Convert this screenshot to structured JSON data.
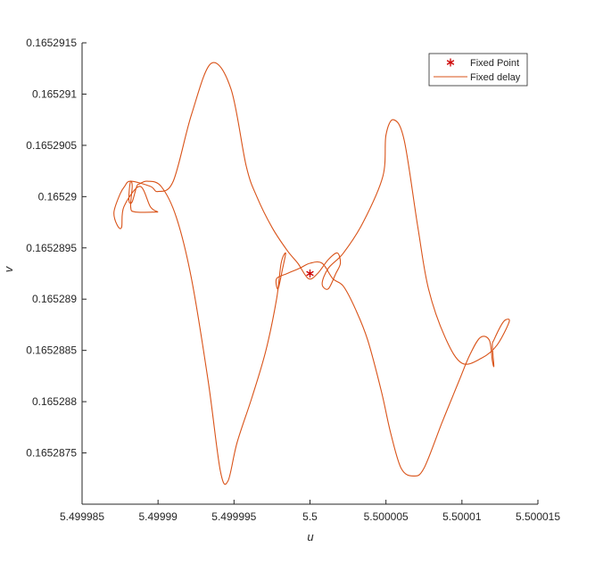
{
  "chart_data": {
    "type": "line",
    "xlabel": "u",
    "ylabel": "v",
    "xlim": [
      5.499985,
      5.500015
    ],
    "ylim": [
      0.165287,
      0.1652915
    ],
    "xticks": [
      5.499985,
      5.49999,
      5.499995,
      5.5,
      5.500005,
      5.50001,
      5.500015
    ],
    "xtick_labels": [
      "5.499985",
      "5.49999",
      "5.499995",
      "5.5",
      "5.500005",
      "5.50001",
      "5.500015"
    ],
    "yticks": [
      0.1652875,
      0.165288,
      0.1652885,
      0.165289,
      0.1652895,
      0.16529,
      0.1652905,
      0.165291,
      0.1652915
    ],
    "ytick_labels": [
      "0.1652875",
      "0.165288",
      "0.1652885",
      "0.165289",
      "0.1652895",
      "0.16529",
      "0.1652905",
      "0.165291",
      "0.1652915"
    ],
    "grid": false,
    "legend_position": "top-right",
    "series": [
      {
        "name": "Fixed Point",
        "kind": "marker",
        "marker": "asterisk",
        "color": "#cc0000",
        "x": [
          5.5
        ],
        "y": [
          0.16528925
        ]
      },
      {
        "name": "Fixed delay",
        "kind": "line",
        "color": "#d95319",
        "points": [
          [
            5.49999,
            0.16528985
          ],
          [
            5.4999895,
            0.1652899
          ],
          [
            5.4999888,
            0.1652901
          ],
          [
            5.49998775,
            0.1652899
          ],
          [
            5.4999876,
            0.1652897
          ],
          [
            5.4999873,
            0.165289725
          ],
          [
            5.4999871,
            0.16528985
          ],
          [
            5.4999875,
            0.165290025
          ],
          [
            5.4999878,
            0.1652901
          ],
          [
            5.4999882,
            0.16529015
          ],
          [
            5.4999895,
            0.1652901
          ],
          [
            5.49999,
            0.16529005
          ],
          [
            5.499991,
            0.16529015
          ],
          [
            5.4999922,
            0.1652908
          ],
          [
            5.4999935,
            0.1652913
          ],
          [
            5.4999948,
            0.16529105
          ],
          [
            5.4999958,
            0.1652903
          ],
          [
            5.4999965,
            0.16529
          ],
          [
            5.4999975,
            0.1652897
          ],
          [
            5.4999985,
            0.165289475
          ],
          [
            5.4999992,
            0.16528935
          ],
          [
            5.4999999,
            0.1652892
          ],
          [
            5.5000005,
            0.16528925
          ],
          [
            5.5000012,
            0.165289385
          ],
          [
            5.5000018,
            0.16528945
          ],
          [
            5.500002,
            0.16528935
          ],
          [
            5.5000017,
            0.16528925
          ],
          [
            5.5000012,
            0.1652891
          ],
          [
            5.5000008,
            0.16528915
          ],
          [
            5.5000012,
            0.1652893
          ],
          [
            5.5000022,
            0.16528945
          ],
          [
            5.5000035,
            0.16528975
          ],
          [
            5.5000048,
            0.1652902
          ],
          [
            5.500005,
            0.1652906
          ],
          [
            5.5000055,
            0.16529075
          ],
          [
            5.5000062,
            0.16529055
          ],
          [
            5.5000071,
            0.1652897
          ],
          [
            5.5000078,
            0.1652891
          ],
          [
            5.5000089,
            0.165288625
          ],
          [
            5.50001,
            0.165288375
          ],
          [
            5.5000113,
            0.165288425
          ],
          [
            5.5000123,
            0.16528855
          ],
          [
            5.5000131,
            0.165288775
          ],
          [
            5.5000129,
            0.1652888
          ],
          [
            5.5000126,
            0.16528875
          ],
          [
            5.5000121,
            0.1652886
          ],
          [
            5.500012,
            0.16528855
          ],
          [
            5.5000121,
            0.16528835
          ],
          [
            5.500012,
            0.1652884
          ],
          [
            5.5000118,
            0.1652886
          ],
          [
            5.5000112,
            0.165288625
          ],
          [
            5.5000105,
            0.16528845
          ],
          [
            5.5000098,
            0.1652882
          ],
          [
            5.5000087,
            0.1652878
          ],
          [
            5.5000075,
            0.16528735
          ],
          [
            5.5000068,
            0.165287275
          ],
          [
            5.500006,
            0.16528735
          ],
          [
            5.5000053,
            0.1652877
          ],
          [
            5.5000047,
            0.1652881
          ],
          [
            5.5000038,
            0.1652886
          ],
          [
            5.500003,
            0.1652889
          ],
          [
            5.5000022,
            0.165289125
          ],
          [
            5.5000015,
            0.1652892
          ],
          [
            5.5000008,
            0.16528935
          ],
          [
            5.5,
            0.16528935
          ],
          [
            5.4999993,
            0.1652893
          ],
          [
            5.4999985,
            0.16528925
          ],
          [
            5.4999978,
            0.1652892
          ],
          [
            5.4999979,
            0.1652891
          ],
          [
            5.4999982,
            0.1652893
          ],
          [
            5.4999984,
            0.16528945
          ],
          [
            5.4999981,
            0.16528935
          ],
          [
            5.4999978,
            0.165289
          ],
          [
            5.4999971,
            0.1652885
          ],
          [
            5.4999962,
            0.16528805
          ],
          [
            5.4999952,
            0.1652876
          ],
          [
            5.4999946,
            0.165287225
          ],
          [
            5.4999941,
            0.165287325
          ],
          [
            5.4999933,
            0.1652882
          ],
          [
            5.4999922,
            0.1652892
          ],
          [
            5.4999912,
            0.1652898
          ],
          [
            5.4999902,
            0.1652901
          ],
          [
            5.4999893,
            0.16529015
          ],
          [
            5.4999888,
            0.165290125
          ],
          [
            5.4999886,
            0.1652901
          ],
          [
            5.4999883,
            0.16528995
          ],
          [
            5.4999881,
            0.16528995
          ],
          [
            5.4999881,
            0.16529005
          ],
          [
            5.4999882,
            0.16529015
          ],
          [
            5.4999883,
            0.1652901
          ],
          [
            5.4999882,
            0.1652899
          ],
          [
            5.4999885,
            0.16528985
          ],
          [
            5.49999,
            0.16528985
          ]
        ]
      }
    ]
  }
}
